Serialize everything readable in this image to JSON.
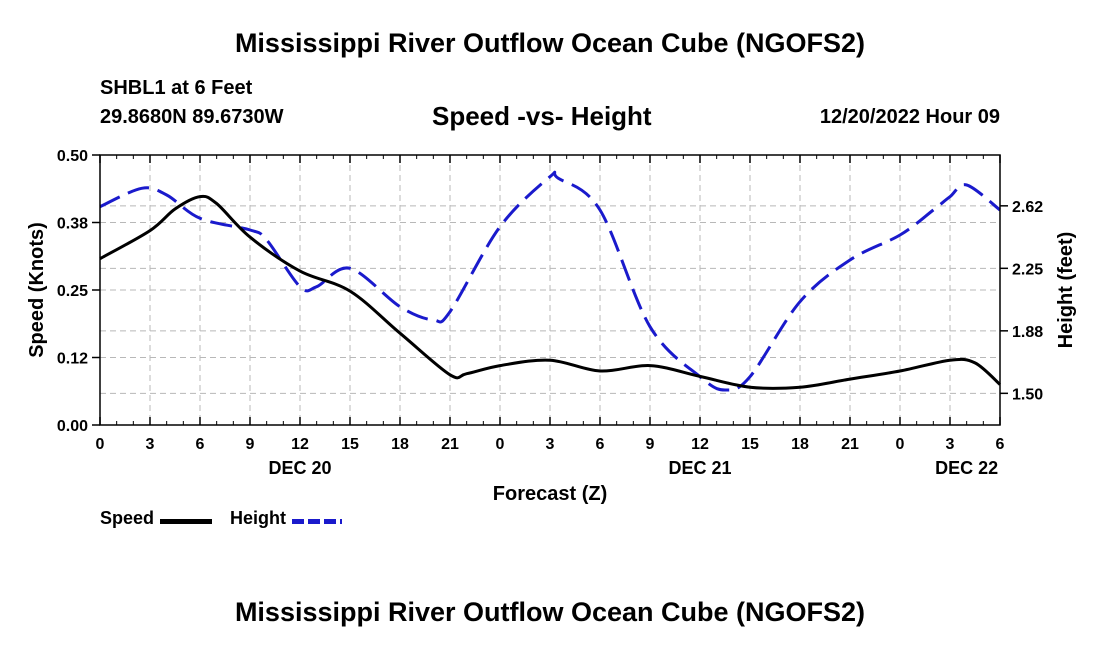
{
  "header": {
    "title": "Mississippi River Outflow Ocean Cube (NGOFS2)",
    "station": "SHBL1 at 6 Feet",
    "coords": "29.8680N  89.6730W",
    "subtitle": "Speed -vs- Height",
    "datetime": "12/20/2022 Hour 09"
  },
  "footer": {
    "title": "Mississippi River Outflow Ocean Cube (NGOFS2)"
  },
  "chart_data": {
    "type": "line",
    "title": "Speed -vs- Height",
    "xlabel": "Forecast (Z)",
    "ylabel": "Speed (Knots)",
    "y2label": "Height (feet)",
    "x_start_hour": 0,
    "x_end_hour": 54,
    "x_tick_step": 3,
    "x_tick_labels": [
      "0",
      "3",
      "6",
      "9",
      "12",
      "15",
      "18",
      "21",
      "0",
      "3",
      "6",
      "9",
      "12",
      "15",
      "18",
      "21",
      "0",
      "3",
      "6"
    ],
    "date_labels": [
      {
        "hour": 12,
        "label": "DEC 20"
      },
      {
        "hour": 36,
        "label": "DEC 21"
      },
      {
        "hour": 52,
        "label": "DEC 22"
      }
    ],
    "ylim": [
      0,
      0.5
    ],
    "y_ticks": [
      0.0,
      0.125,
      0.25,
      0.375,
      0.5
    ],
    "y_tick_labels": [
      "0.00",
      "0.12",
      "0.25",
      "0.38",
      "0.50"
    ],
    "y2lim": [
      1.31,
      2.93
    ],
    "y2_ticks": [
      1.5,
      1.875,
      2.25,
      2.625
    ],
    "y2_tick_labels": [
      "1.50",
      "1.88",
      "2.25",
      "2.62"
    ],
    "grid": true,
    "series": [
      {
        "name": "Speed",
        "axis": "left",
        "color": "#000000",
        "style": "solid",
        "x": [
          0,
          3,
          4.5,
          6,
          7,
          9,
          12,
          15,
          18,
          21,
          22,
          24,
          27,
          30,
          33,
          36,
          39,
          42,
          45,
          48,
          51,
          52.5,
          54
        ],
        "y": [
          0.308,
          0.36,
          0.4,
          0.423,
          0.41,
          0.348,
          0.285,
          0.248,
          0.17,
          0.093,
          0.095,
          0.11,
          0.12,
          0.1,
          0.11,
          0.09,
          0.07,
          0.07,
          0.085,
          0.1,
          0.12,
          0.115,
          0.075
        ]
      },
      {
        "name": "Height",
        "axis": "right",
        "color": "#1a1acc",
        "style": "dashed",
        "x": [
          0,
          2.5,
          4,
          6,
          9,
          10,
          12,
          13,
          15,
          18,
          20,
          21,
          24,
          27,
          27.5,
          30,
          33,
          36,
          37.5,
          39,
          42,
          45,
          48,
          50,
          51,
          52,
          54
        ],
        "y": [
          2.62,
          2.73,
          2.69,
          2.55,
          2.48,
          2.42,
          2.14,
          2.14,
          2.25,
          2.02,
          1.94,
          1.99,
          2.5,
          2.8,
          2.79,
          2.6,
          1.9,
          1.6,
          1.52,
          1.6,
          2.05,
          2.3,
          2.45,
          2.6,
          2.68,
          2.75,
          2.6
        ]
      }
    ],
    "legend": [
      {
        "label": "Speed",
        "color": "#000000",
        "style": "solid"
      },
      {
        "label": "Height",
        "color": "#1a1acc",
        "style": "dashed"
      }
    ]
  }
}
